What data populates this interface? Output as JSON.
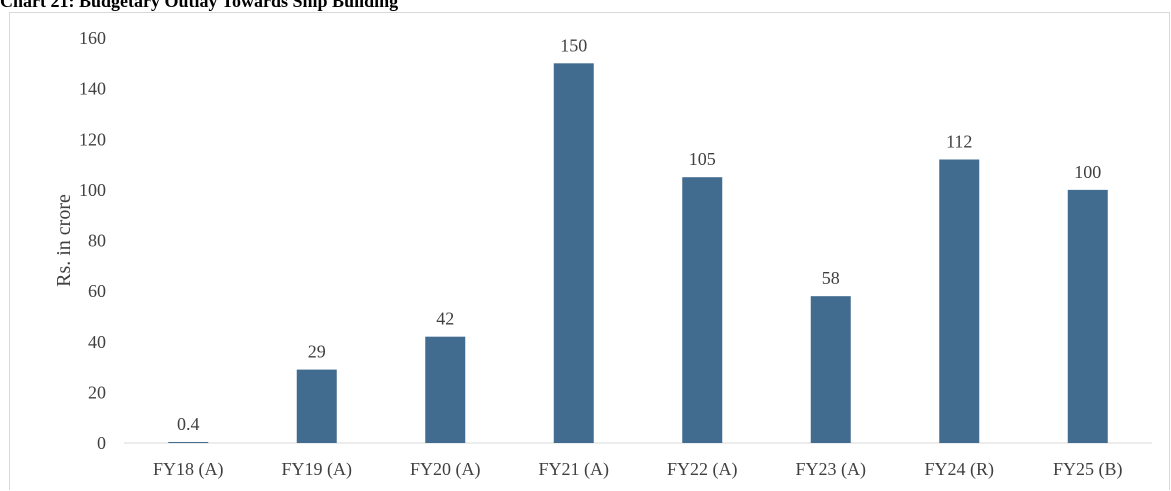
{
  "chart_data": {
    "type": "bar",
    "title": "Chart 21: Budgetary Outlay Towards Ship Building",
    "xlabel": "",
    "ylabel": "Rs. in crore",
    "categories": [
      "FY18 (A)",
      "FY19 (A)",
      "FY20 (A)",
      "FY21 (A)",
      "FY22 (A)",
      "FY23 (A)",
      "FY24 (R)",
      "FY25 (B)"
    ],
    "values": [
      0.4,
      29,
      42,
      150,
      105,
      58,
      112,
      100
    ],
    "data_labels": [
      "0.4",
      "29",
      "42",
      "150",
      "105",
      "58",
      "112",
      "100"
    ],
    "y_ticks": [
      0,
      20,
      40,
      60,
      80,
      100,
      120,
      140,
      160
    ],
    "ylim": [
      0,
      160
    ],
    "grid": false,
    "legend": "none",
    "colors": {
      "bar": "#416B8F",
      "axis": "#d9d9d9",
      "text": "#404040"
    }
  }
}
